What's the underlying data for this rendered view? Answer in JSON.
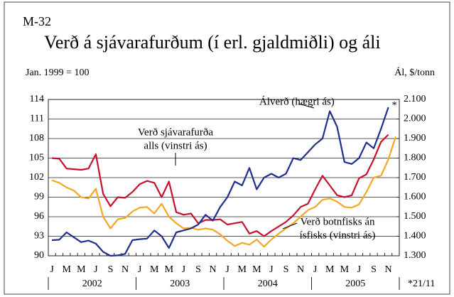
{
  "chart_data": {
    "type": "line",
    "chart_id": "M-32",
    "title": "Verð á sjávarafurðum (í erl. gjaldmiðli) og áli",
    "y_label": "Jan. 1999 = 100",
    "y2_label": "Ál, $/tonn",
    "categories": [
      "J",
      null,
      "M",
      null,
      "M",
      null,
      "J",
      null,
      "S",
      null,
      "N",
      null,
      "J",
      null,
      "M",
      null,
      "M",
      null,
      "J",
      null,
      "S",
      null,
      "N",
      null,
      "J",
      null,
      "M",
      null,
      "M",
      null,
      "J",
      null,
      "S",
      null,
      "N",
      null,
      "J",
      null,
      "M",
      null,
      "M",
      null,
      "J",
      null,
      "S",
      null,
      "N",
      null
    ],
    "years": [
      "2002",
      "2003",
      "2004",
      "2005"
    ],
    "ylim": [
      90,
      114
    ],
    "yticks": [
      90,
      93,
      96,
      99,
      102,
      105,
      108,
      111,
      114
    ],
    "y2lim": [
      1300,
      2100
    ],
    "y2ticks": [
      {
        "value": 1300,
        "label": "1.300"
      },
      {
        "value": 1400,
        "label": "1.400"
      },
      {
        "value": 1500,
        "label": "1.500"
      },
      {
        "value": 1600,
        "label": "1.600"
      },
      {
        "value": 1700,
        "label": "1.700"
      },
      {
        "value": 1800,
        "label": "1.800"
      },
      {
        "value": 1900,
        "label": "1.900"
      },
      {
        "value": 2000,
        "label": "2.000"
      },
      {
        "value": 2100,
        "label": "2.100"
      }
    ],
    "grid": true,
    "series": [
      {
        "name": "Verð sjávarafurða alls (vinstri ás)",
        "color": "#c8102e",
        "axis": "y",
        "values": [
          105.0,
          104.9,
          103.4,
          103.3,
          103.2,
          103.4,
          105.6,
          99.5,
          97.6,
          99.0,
          98.9,
          99.8,
          101.0,
          101.5,
          101.2,
          99.0,
          101.4,
          96.7,
          96.3,
          96.5,
          95.0,
          95.5,
          95.5,
          95.6,
          94.8,
          95.0,
          95.2,
          93.4,
          93.8,
          93.0,
          93.8,
          94.5,
          95.2,
          96.2,
          97.5,
          98.0,
          100.2,
          102.3,
          100.8,
          99.3,
          99.0,
          99.3,
          101.9,
          102.5,
          104.8,
          107.5,
          108.6,
          null
        ]
      },
      {
        "name": "Verð botnfisks án ísfisks (vinstri ás)",
        "color": "#f5a623",
        "axis": "y",
        "values": [
          101.6,
          101.2,
          100.5,
          100.0,
          99.0,
          98.8,
          100.3,
          96.0,
          94.2,
          95.6,
          95.8,
          96.8,
          97.4,
          97.5,
          96.5,
          98.0,
          96.0,
          95.0,
          94.2,
          94.3,
          94.0,
          94.2,
          94.0,
          93.3,
          92.3,
          91.5,
          92.0,
          91.7,
          92.5,
          91.4,
          92.5,
          93.4,
          94.2,
          95.0,
          96.0,
          97.0,
          97.5,
          98.6,
          98.8,
          98.3,
          97.5,
          97.4,
          97.9,
          99.8,
          102.0,
          102.3,
          104.8,
          108.3
        ]
      },
      {
        "name": "Álverð (hægri ás)",
        "color": "#1f2f8f",
        "axis": "y2",
        "values": [
          1380,
          1382,
          1420,
          1395,
          1370,
          1378,
          1362,
          1320,
          1300,
          1302,
          1310,
          1380,
          1385,
          1388,
          1430,
          1400,
          1340,
          1420,
          1430,
          1440,
          1460,
          1510,
          1480,
          1550,
          1600,
          1680,
          1660,
          1750,
          1640,
          1700,
          1720,
          1700,
          1720,
          1800,
          1790,
          1830,
          1870,
          1900,
          2040,
          1960,
          1780,
          1770,
          1800,
          1880,
          1850,
          1950,
          2060,
          null
        ]
      }
    ],
    "annotations": [
      {
        "lines": [
          "Álverð (hægri ás)"
        ]
      },
      {
        "lines": [
          "Verð sjávarafurða",
          "alls (vinstri ás)"
        ]
      },
      {
        "lines": [
          "Verð botnfisks án",
          "ísfisks (vinstri ás)"
        ]
      }
    ],
    "end_marker": "*",
    "footnote": "*21/11"
  }
}
